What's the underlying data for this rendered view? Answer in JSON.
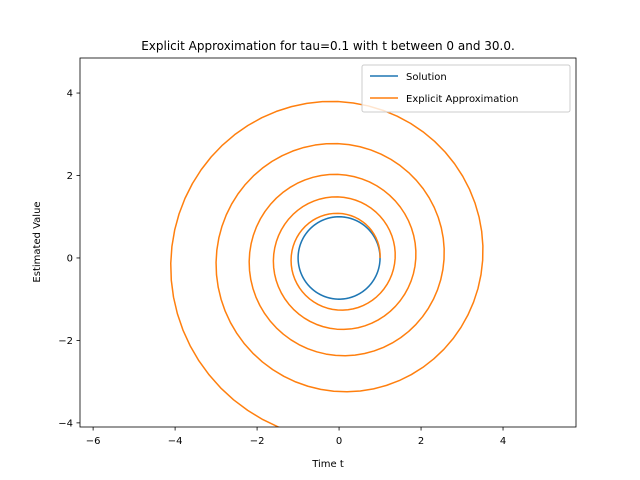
{
  "chart_data": {
    "type": "line",
    "title": "Explicit Approximation for tau=0.1 with t between 0 and 30.0.",
    "xlabel": "Time t",
    "ylabel": "Estimated Value",
    "xlim": [
      -6.32,
      5.78
    ],
    "ylim": [
      -4.1,
      4.85
    ],
    "xticks": [
      -6,
      -4,
      -2,
      0,
      2,
      4
    ],
    "yticks": [
      -4,
      -2,
      0,
      2,
      4
    ],
    "grid": false,
    "legend": {
      "placement": "upper right",
      "entries": [
        "Solution",
        "Explicit Approximation"
      ]
    },
    "series": [
      {
        "name": "Solution",
        "color": "#1f77b4",
        "parametric": "x = cos(t), y = sin(t)",
        "t_range": [
          0,
          30.0
        ],
        "dt": 0.1
      },
      {
        "name": "Explicit Approximation",
        "color": "#ff7f0e",
        "method": "explicit Euler for x' = -y, y' = x",
        "start": [
          1,
          0
        ],
        "t_range": [
          0,
          30.0
        ],
        "dt": 0.1,
        "end_point": [
          0.02,
          4.46
        ]
      }
    ]
  }
}
